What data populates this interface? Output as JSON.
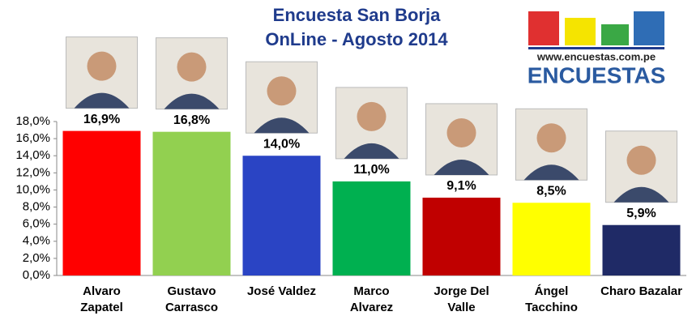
{
  "chart_data": {
    "type": "bar",
    "title": "Encuesta  San Borja",
    "subtitle": "OnLine - Agosto  2014",
    "annotations": [
      "www.encuestas.com.pe",
      "ENCUESTAS"
    ],
    "categories": [
      "Alvaro\nZapatel",
      "Gustavo\nCarrasco",
      "José Valdez",
      "Marco\nAlvarez",
      "Jorge Del\nValle",
      "Ángel\nTacchino",
      "Charo Bazalar"
    ],
    "values": [
      16.9,
      16.8,
      14.0,
      11.0,
      9.1,
      8.5,
      5.9
    ],
    "value_labels": [
      "16,9%",
      "16,8%",
      "14,0%",
      "11,0%",
      "9,1%",
      "8,5%",
      "5,9%"
    ],
    "colors": [
      "#ff0000",
      "#92d050",
      "#2a44c4",
      "#00b050",
      "#c00000",
      "#ffff00",
      "#1f2a66"
    ],
    "ylim": [
      0,
      18
    ],
    "yticks": [
      {
        "value": 0,
        "label": "0,0%"
      },
      {
        "value": 2,
        "label": "2,0%"
      },
      {
        "value": 4,
        "label": "4,0%"
      },
      {
        "value": 6,
        "label": "6,0%"
      },
      {
        "value": 8,
        "label": "8,0%"
      },
      {
        "value": 10,
        "label": "10,0%"
      },
      {
        "value": 12,
        "label": "12,0%"
      },
      {
        "value": 14,
        "label": "14,0%"
      },
      {
        "value": 16,
        "label": "16,0%"
      },
      {
        "value": 18,
        "label": "18,0%"
      }
    ],
    "grid": false
  }
}
